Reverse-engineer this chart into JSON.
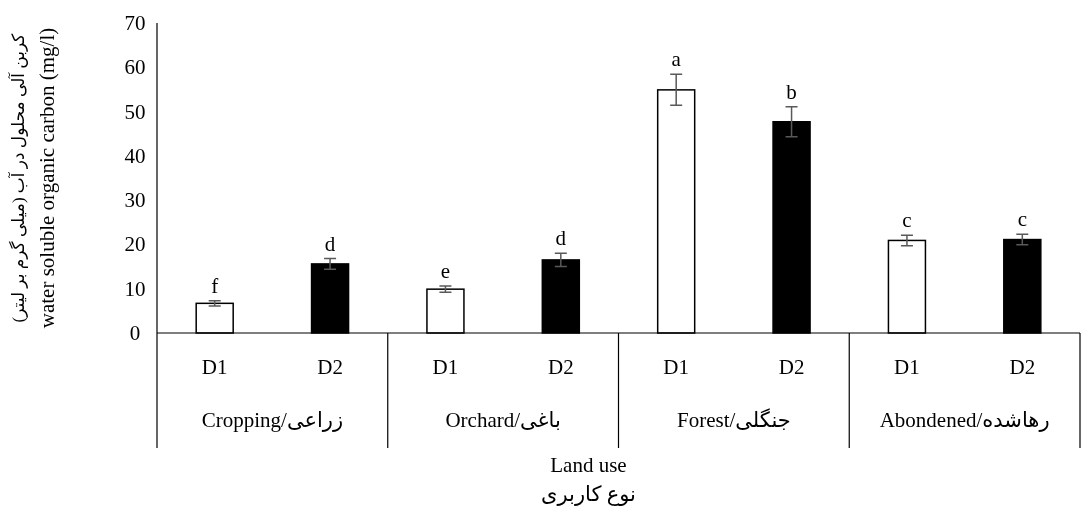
{
  "chart_data": {
    "type": "bar",
    "xlabel": "Land use\nنوع کاربری",
    "ylabel": "کربن آلی محلول در آب (میلی گرم بر لیتر)\nwater soluble organic carbon (mg/l)",
    "categories": [
      "Cropping/زراعی",
      "Orchard/باغی",
      "Forest/جنگلی",
      "Abondened/رهاشده"
    ],
    "series": [
      {
        "name": "D1",
        "color": "#ffffff",
        "values": [
          6.7,
          9.9,
          54.9,
          20.9
        ],
        "errors": [
          0.6,
          0.7,
          3.5,
          1.2
        ],
        "value_labels": [
          "f",
          "e",
          "a",
          "c"
        ]
      },
      {
        "name": "D2",
        "color": "#000000",
        "values": [
          15.6,
          16.5,
          47.7,
          21.1
        ],
        "errors": [
          1.2,
          1.5,
          3.4,
          1.2
        ],
        "value_labels": [
          "d",
          "d",
          "b",
          "c"
        ]
      }
    ],
    "ylim": [
      0,
      70
    ],
    "yticks": [
      0,
      10,
      20,
      30,
      40,
      50,
      60,
      70
    ]
  }
}
